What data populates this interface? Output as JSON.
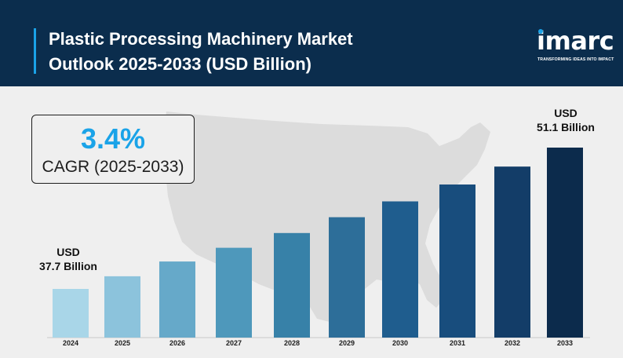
{
  "header": {
    "title_line1": "Plastic Processing Machinery Market",
    "title_line2": "Outlook 2025-2033 (USD Billion)"
  },
  "logo": {
    "word": "imarc",
    "tagline": "TRANSFORMING IDEAS INTO IMPACT"
  },
  "cagr": {
    "value": "3.4%",
    "label": "CAGR (2025-2033)"
  },
  "callouts": {
    "start": {
      "line1": "USD",
      "line2": "37.7 Billion"
    },
    "end": {
      "line1": "USD",
      "line2": "51.1 Billion"
    }
  },
  "colors": {
    "header_bg": "#0b2d4d",
    "accent": "#1aa3e8",
    "map": "#dcdcdc",
    "bar_colors": [
      "#a9d6e8",
      "#8cc3dc",
      "#66a9c9",
      "#4e98bb",
      "#3781a8",
      "#2d6e99",
      "#1f5d8e",
      "#184d7d",
      "#133d68",
      "#0c2b4c"
    ]
  },
  "chart_data": {
    "type": "bar",
    "categories": [
      "2024",
      "2025",
      "2026",
      "2027",
      "2028",
      "2029",
      "2030",
      "2031",
      "2032",
      "2033"
    ],
    "values": [
      37.7,
      38.9,
      40.3,
      41.6,
      43.0,
      44.5,
      46.0,
      47.6,
      49.3,
      51.1
    ],
    "title": "Plastic Processing Machinery Market Outlook 2025-2033 (USD Billion)",
    "xlabel": "",
    "ylabel": "",
    "grid": false,
    "legend": "none"
  }
}
